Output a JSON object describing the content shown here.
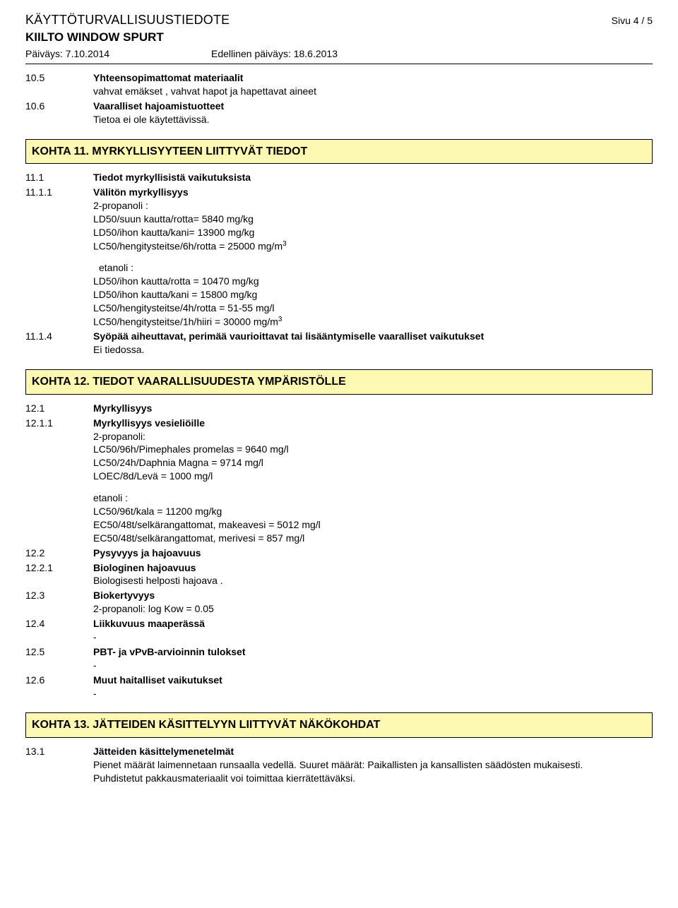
{
  "doc_type": "KÄYTTÖTURVALLISUUSTIEDOTE",
  "page_label": "Sivu  4 / 5",
  "product_name": "KIILTO WINDOW SPURT",
  "date_label": "Päiväys: 7.10.2014",
  "prev_date_label": "Edellinen päiväys: 18.6.2013",
  "s10": {
    "n10_5": "10.5",
    "h10_5": "Yhteensopimattomat materiaalit",
    "t10_5": "vahvat emäkset , vahvat hapot ja hapettavat aineet",
    "n10_6": "10.6",
    "h10_6": "Vaaralliset hajoamistuotteet",
    "t10_6": "Tietoa ei ole käytettävissä."
  },
  "sec11_title": "KOHTA 11. MYRKYLLISYYTEEN LIITTYVÄT TIEDOT",
  "s11": {
    "n11_1": "11.1",
    "h11_1": "Tiedot myrkyllisistä vaikutuksista",
    "n11_1_1": "11.1.1",
    "h11_1_1": "Välitön myrkyllisyys",
    "b1_l1": "2-propanoli :",
    "b1_l2": "LD50/suun kautta/rotta= 5840 mg/kg",
    "b1_l3": "LD50/ihon kautta/kani=  13900 mg/kg",
    "b1_l4a": "LC50/hengitysteitse/6h/rotta = 25000 mg/m",
    "b1_l4s": "3",
    "b2_l1": "etanoli :",
    "b2_l2": "LD50/ihon kautta/rotta = 10470 mg/kg",
    "b2_l3": "LD50/ihon kautta/kani = 15800 mg/kg",
    "b2_l4": "LC50/hengitysteitse/4h/rotta = 51-55 mg/l",
    "b2_l5a": "LC50/hengitysteitse/1h/hiiri = 30000 mg/m",
    "b2_l5s": "3",
    "n11_1_4": "11.1.4",
    "h11_1_4": "Syöpää aiheuttavat, perimää vaurioittavat tai lisääntymiselle vaaralliset vaikutukset",
    "t11_1_4": "Ei tiedossa."
  },
  "sec12_title": "KOHTA 12. TIEDOT VAARALLISUUDESTA YMPÄRISTÖLLE",
  "s12": {
    "n12_1": "12.1",
    "h12_1": "Myrkyllisyys",
    "n12_1_1": "12.1.1",
    "h12_1_1": "Myrkyllisyys vesieliöille",
    "a_l1": "2-propanoli:",
    "a_l2": "LC50/96h/Pimephales promelas = 9640 mg/l",
    "a_l3": "LC50/24h/Daphnia Magna = 9714 mg/l",
    "a_l4": "LOEC/8d/Levä = 1000 mg/l",
    "b_l1": "etanoli :",
    "b_l2": "LC50/96t/kala = 11200 mg/kg",
    "b_l3": "EC50/48t/selkärangattomat, makeavesi = 5012 mg/l",
    "b_l4": "EC50/48t/selkärangattomat, merivesi = 857 mg/l",
    "n12_2": "12.2",
    "h12_2": "Pysyvyys ja hajoavuus",
    "n12_2_1": "12.2.1",
    "h12_2_1": "Biologinen hajoavuus",
    "t12_2_1": "Biologisesti helposti hajoava .",
    "n12_3": "12.3",
    "h12_3": "Biokertyvyys",
    "t12_3": "2-propanoli: log Kow = 0.05",
    "n12_4": "12.4",
    "h12_4": "Liikkuvuus maaperässä",
    "dash": "-",
    "n12_5": "12.5",
    "h12_5": "PBT- ja vPvB-arvioinnin tulokset",
    "n12_6": "12.6",
    "h12_6": "Muut haitalliset vaikutukset"
  },
  "sec13_title": "KOHTA 13. JÄTTEIDEN KÄSITTELYYN LIITTYVÄT NÄKÖKOHDAT",
  "s13": {
    "n13_1": "13.1",
    "h13_1": "Jätteiden käsittelymenetelmät",
    "t13_1a": "Pienet määrät laimennetaan runsaalla vedellä.  Suuret määrät: Paikallisten ja kansallisten säädösten mukaisesti.",
    "t13_1b": "Puhdistetut pakkausmateriaalit voi toimittaa kierrätettäväksi."
  }
}
